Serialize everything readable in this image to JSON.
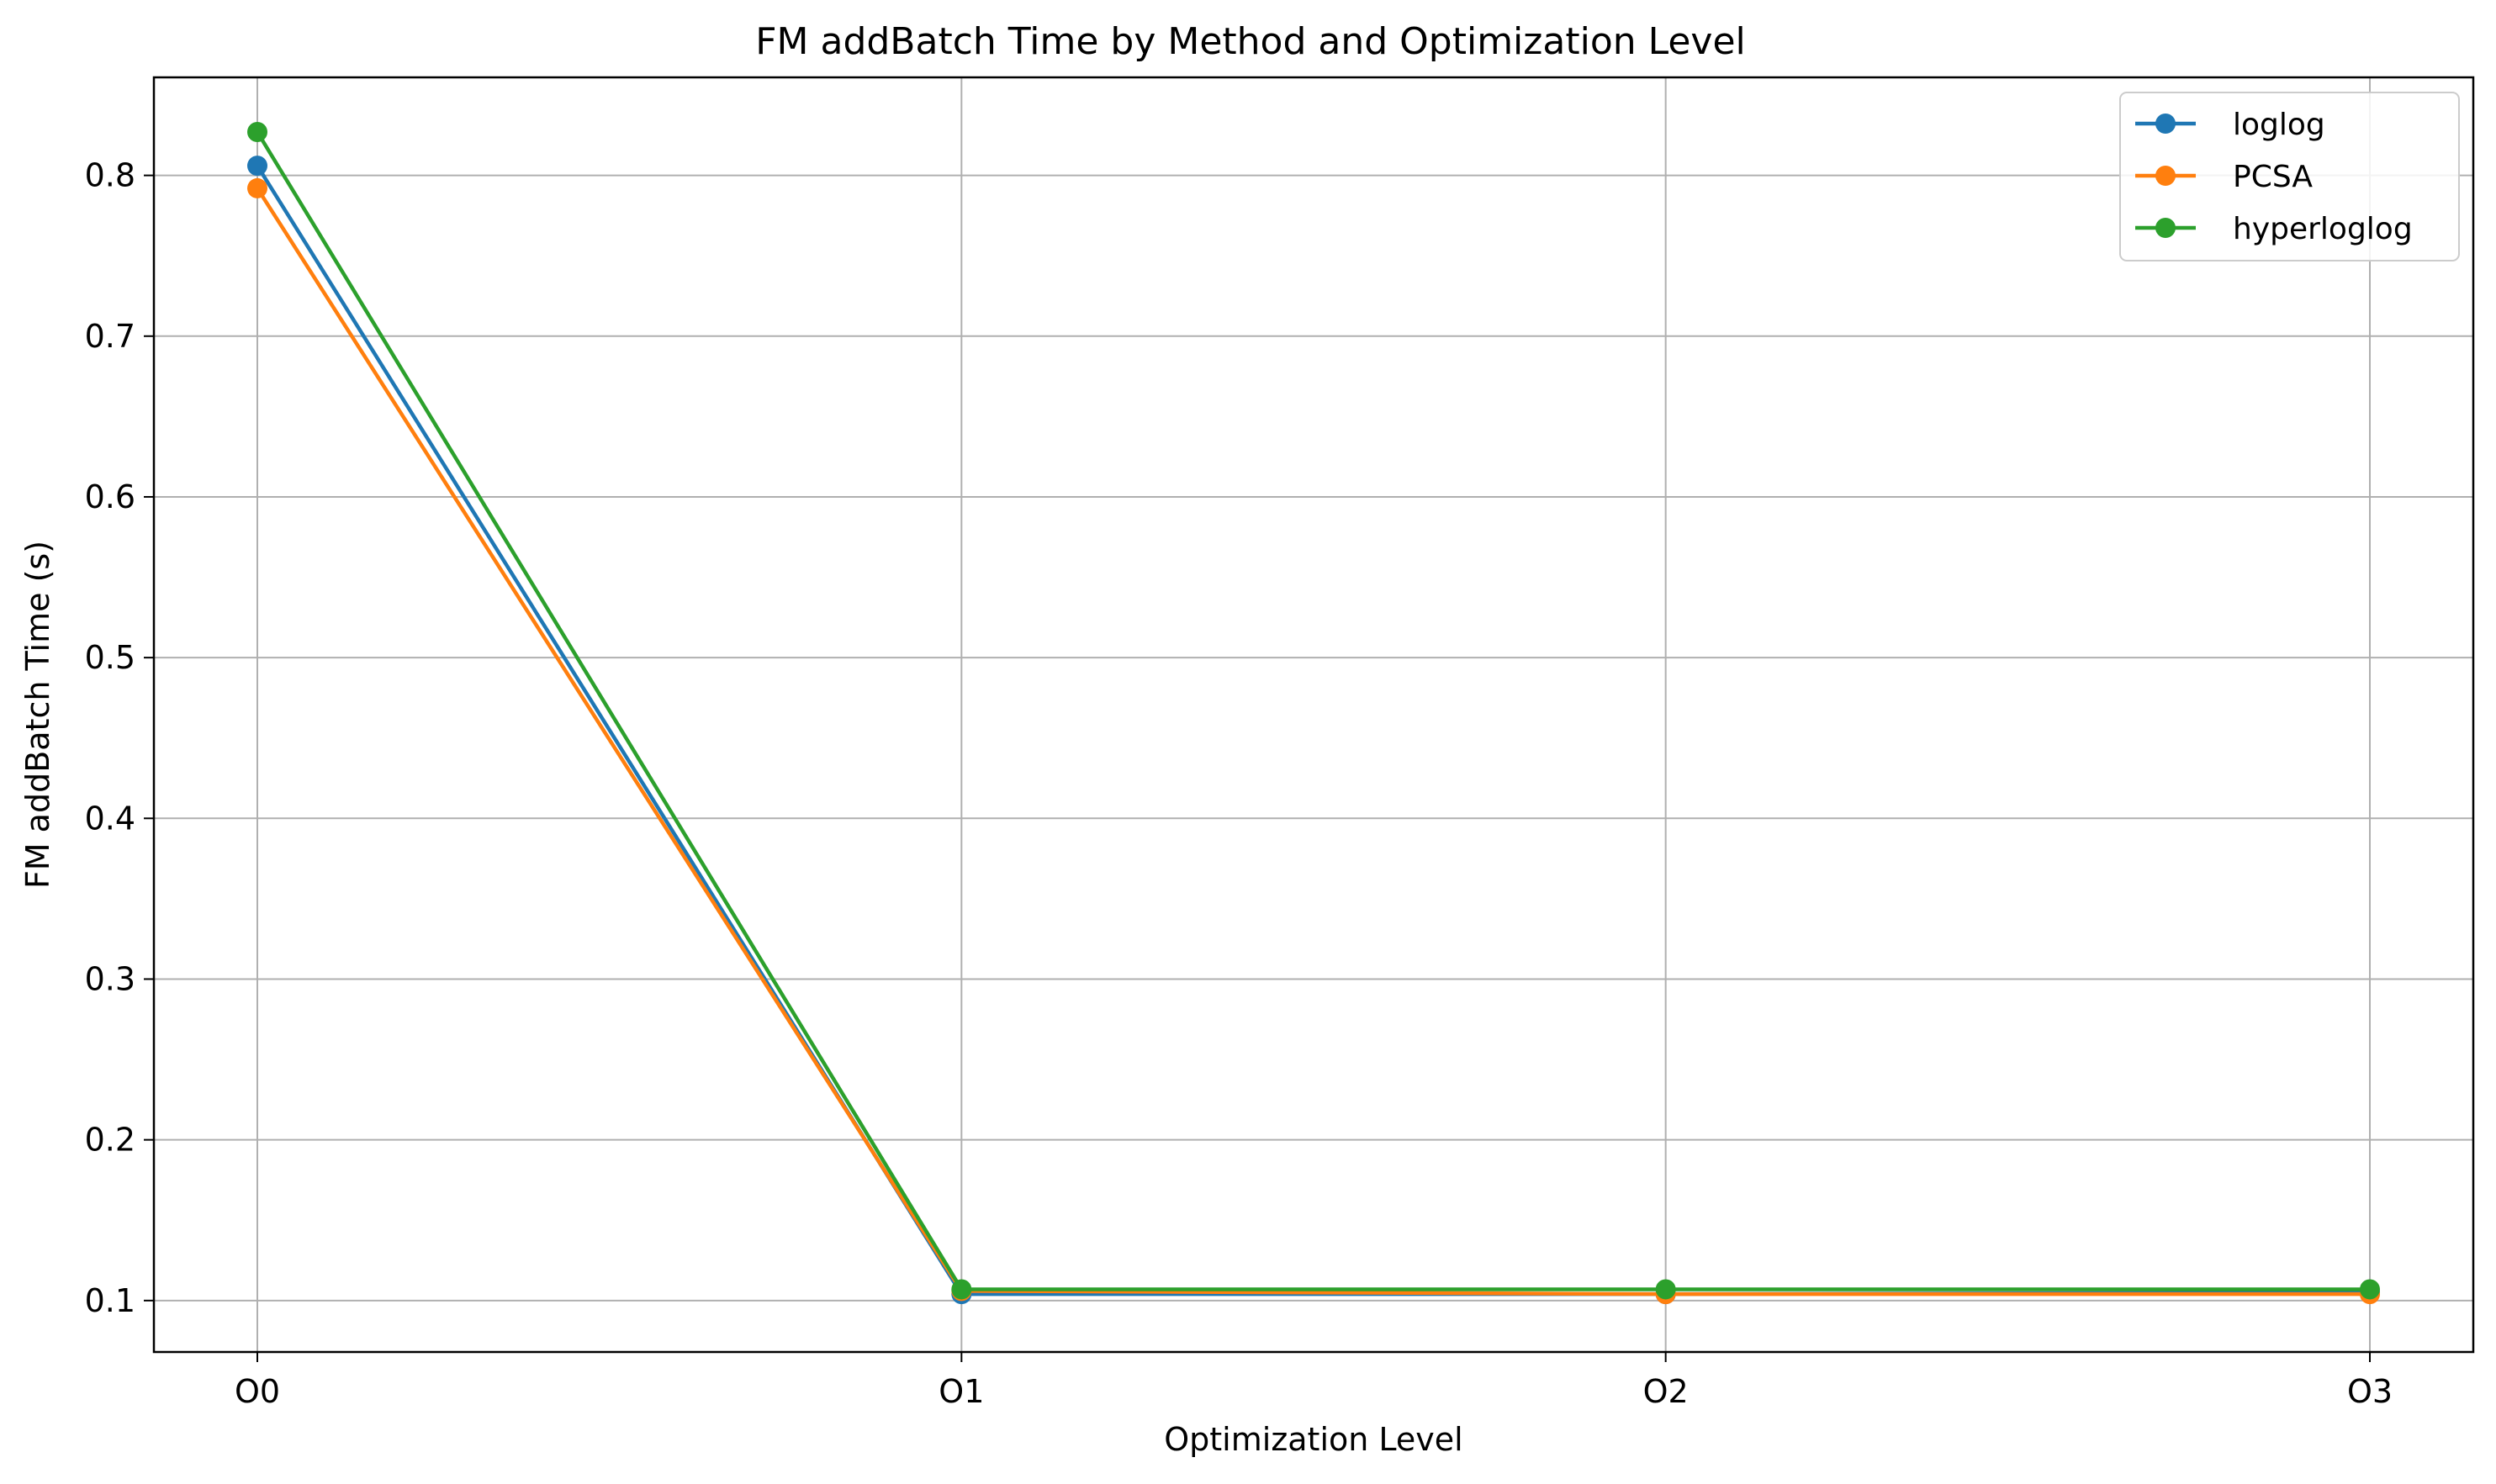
{
  "chart_data": {
    "type": "line",
    "title": "FM addBatch Time by Method and Optimization Level",
    "xlabel": "Optimization Level",
    "ylabel": "FM addBatch Time (s)",
    "categories": [
      "O0",
      "O1",
      "O2",
      "O3"
    ],
    "ylim": [
      0.068,
      0.861
    ],
    "yticks": [
      "0.1",
      "0.2",
      "0.3",
      "0.4",
      "0.5",
      "0.6",
      "0.7",
      "0.8"
    ],
    "grid": true,
    "legend_position": "top-right",
    "marker": "circle",
    "series": [
      {
        "name": "loglog",
        "color": "#1f77b4",
        "values": [
          0.806,
          0.104,
          0.104,
          0.105
        ]
      },
      {
        "name": "PCSA",
        "color": "#ff7f0e",
        "values": [
          0.792,
          0.106,
          0.104,
          0.104
        ]
      },
      {
        "name": "hyperloglog",
        "color": "#2ca02c",
        "values": [
          0.827,
          0.107,
          0.107,
          0.107
        ]
      }
    ]
  }
}
